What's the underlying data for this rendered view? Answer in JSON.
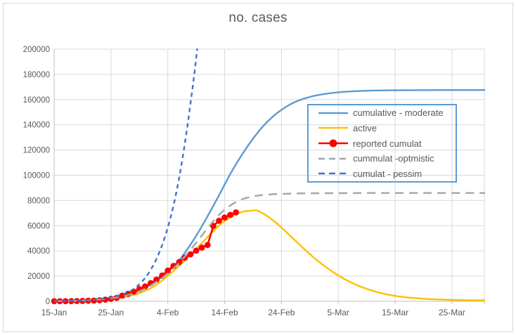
{
  "title": "no. cases",
  "colors": {
    "moderate": "#5B9BD5",
    "active": "#FFC000",
    "reported": "#FF0000",
    "optimistic": "#A5A5A5",
    "pessimistic": "#4472C4",
    "gridline": "#D9D9D9",
    "axis_line": "#BFBFBF",
    "text": "#595959",
    "legend_border": "#5B9BD5"
  },
  "chart_data": {
    "type": "line",
    "title": "no. cases",
    "xlabel": "",
    "ylabel": "",
    "grid": true,
    "x_axis": {
      "unit": "days since 15-Jan",
      "range": [
        0,
        75.7
      ],
      "tick_days": [
        0,
        10,
        20,
        30,
        40,
        50,
        60,
        70
      ],
      "tick_labels": [
        "15-Jan",
        "25-Jan",
        "4-Feb",
        "14-Feb",
        "24-Feb",
        "5-Mar",
        "15-Mar",
        "25-Mar"
      ]
    },
    "y_axis": {
      "range": [
        0,
        200000
      ],
      "tick_interval": 20000,
      "tick_labels": [
        "0",
        "20000",
        "40000",
        "60000",
        "80000",
        "100000",
        "120000",
        "140000",
        "160000",
        "180000",
        "200000"
      ]
    },
    "legend": {
      "position": "overlay-right-center",
      "entries": [
        "cumulative - moderate",
        "active",
        "reported cumulat",
        "cummulat -optmistic",
        "cumulat - pessim"
      ]
    },
    "series": [
      {
        "name": "cumulative - moderate",
        "color": "#5B9BD5",
        "line_style": "solid",
        "marker": "none",
        "points": [
          [
            0,
            150
          ],
          [
            4,
            500
          ],
          [
            8,
            1600
          ],
          [
            12,
            4200
          ],
          [
            15,
            8500
          ],
          [
            17,
            13000
          ],
          [
            19,
            19500
          ],
          [
            21,
            27500
          ],
          [
            23,
            38500
          ],
          [
            25,
            52000
          ],
          [
            27,
            67500
          ],
          [
            29,
            84000
          ],
          [
            31,
            101000
          ],
          [
            33,
            116000
          ],
          [
            35,
            129000
          ],
          [
            37,
            140000
          ],
          [
            39,
            148500
          ],
          [
            41,
            154800
          ],
          [
            43,
            159200
          ],
          [
            46,
            163200
          ],
          [
            50,
            165800
          ],
          [
            55,
            167000
          ],
          [
            60,
            167400
          ],
          [
            66,
            167500
          ],
          [
            71,
            167600
          ],
          [
            76,
            167600
          ]
        ]
      },
      {
        "name": "active",
        "color": "#FFC000",
        "line_style": "solid",
        "marker": "none",
        "points": [
          [
            0,
            30
          ],
          [
            5,
            300
          ],
          [
            10,
            1600
          ],
          [
            14,
            5000
          ],
          [
            17,
            10500
          ],
          [
            19,
            16500
          ],
          [
            21,
            24000
          ],
          [
            23,
            32500
          ],
          [
            25,
            41500
          ],
          [
            27,
            51000
          ],
          [
            29,
            60000
          ],
          [
            31,
            66500
          ],
          [
            33,
            70800
          ],
          [
            35,
            72000
          ],
          [
            36,
            71500
          ],
          [
            38,
            66000
          ],
          [
            40,
            58500
          ],
          [
            42,
            50000
          ],
          [
            44,
            41500
          ],
          [
            46,
            33500
          ],
          [
            48,
            26500
          ],
          [
            50,
            20500
          ],
          [
            52,
            15500
          ],
          [
            54,
            11500
          ],
          [
            56,
            8400
          ],
          [
            58,
            6000
          ],
          [
            60,
            4300
          ],
          [
            63,
            2700
          ],
          [
            66,
            1800
          ],
          [
            70,
            1100
          ],
          [
            76,
            700
          ]
        ]
      },
      {
        "name": "reported cumulat",
        "color": "#FF0000",
        "line_style": "solid",
        "marker": "circle",
        "start_date": "15-Jan",
        "points": [
          [
            0,
            41
          ],
          [
            1,
            45
          ],
          [
            2,
            62
          ],
          [
            3,
            121
          ],
          [
            4,
            198
          ],
          [
            5,
            291
          ],
          [
            6,
            440
          ],
          [
            7,
            571
          ],
          [
            8,
            830
          ],
          [
            9,
            1287
          ],
          [
            10,
            1975
          ],
          [
            11,
            2744
          ],
          [
            12,
            4515
          ],
          [
            13,
            5974
          ],
          [
            14,
            7711
          ],
          [
            15,
            9692
          ],
          [
            16,
            11791
          ],
          [
            17,
            14380
          ],
          [
            18,
            17205
          ],
          [
            19,
            20438
          ],
          [
            20,
            24324
          ],
          [
            21,
            28018
          ],
          [
            22,
            31161
          ],
          [
            23,
            34546
          ],
          [
            24,
            37198
          ],
          [
            25,
            40171
          ],
          [
            26,
            42638
          ],
          [
            27,
            44653
          ],
          [
            28,
            59804
          ],
          [
            29,
            63851
          ],
          [
            30,
            66492
          ],
          [
            31,
            68500
          ],
          [
            32,
            70548
          ]
        ]
      },
      {
        "name": "cummulat -optmistic",
        "color": "#A5A5A5",
        "line_style": "dashed-long",
        "marker": "none",
        "points": [
          [
            0,
            120
          ],
          [
            4,
            450
          ],
          [
            8,
            1400
          ],
          [
            12,
            3800
          ],
          [
            15,
            8000
          ],
          [
            17,
            12500
          ],
          [
            19,
            18500
          ],
          [
            21,
            26000
          ],
          [
            23,
            35500
          ],
          [
            25,
            46500
          ],
          [
            27,
            58000
          ],
          [
            29,
            68500
          ],
          [
            31,
            76000
          ],
          [
            33,
            80800
          ],
          [
            35,
            83200
          ],
          [
            37,
            84400
          ],
          [
            40,
            85200
          ],
          [
            44,
            85600
          ],
          [
            50,
            85800
          ],
          [
            58,
            85900
          ],
          [
            67,
            85900
          ],
          [
            76,
            85900
          ]
        ]
      },
      {
        "name": "cumulat - pessim",
        "color": "#4472C4",
        "line_style": "dashed-short",
        "marker": "none",
        "points": [
          [
            0,
            150
          ],
          [
            3,
            400
          ],
          [
            6,
            1000
          ],
          [
            9,
            2400
          ],
          [
            11,
            4200
          ],
          [
            13,
            7200
          ],
          [
            14,
            9800
          ],
          [
            15,
            13500
          ],
          [
            16,
            18500
          ],
          [
            17,
            25000
          ],
          [
            18,
            33500
          ],
          [
            19,
            44500
          ],
          [
            20,
            58500
          ],
          [
            21,
            76000
          ],
          [
            22,
            98000
          ],
          [
            23,
            125000
          ],
          [
            24,
            157000
          ],
          [
            25,
            193000
          ],
          [
            26,
            238000
          ]
        ]
      }
    ]
  }
}
